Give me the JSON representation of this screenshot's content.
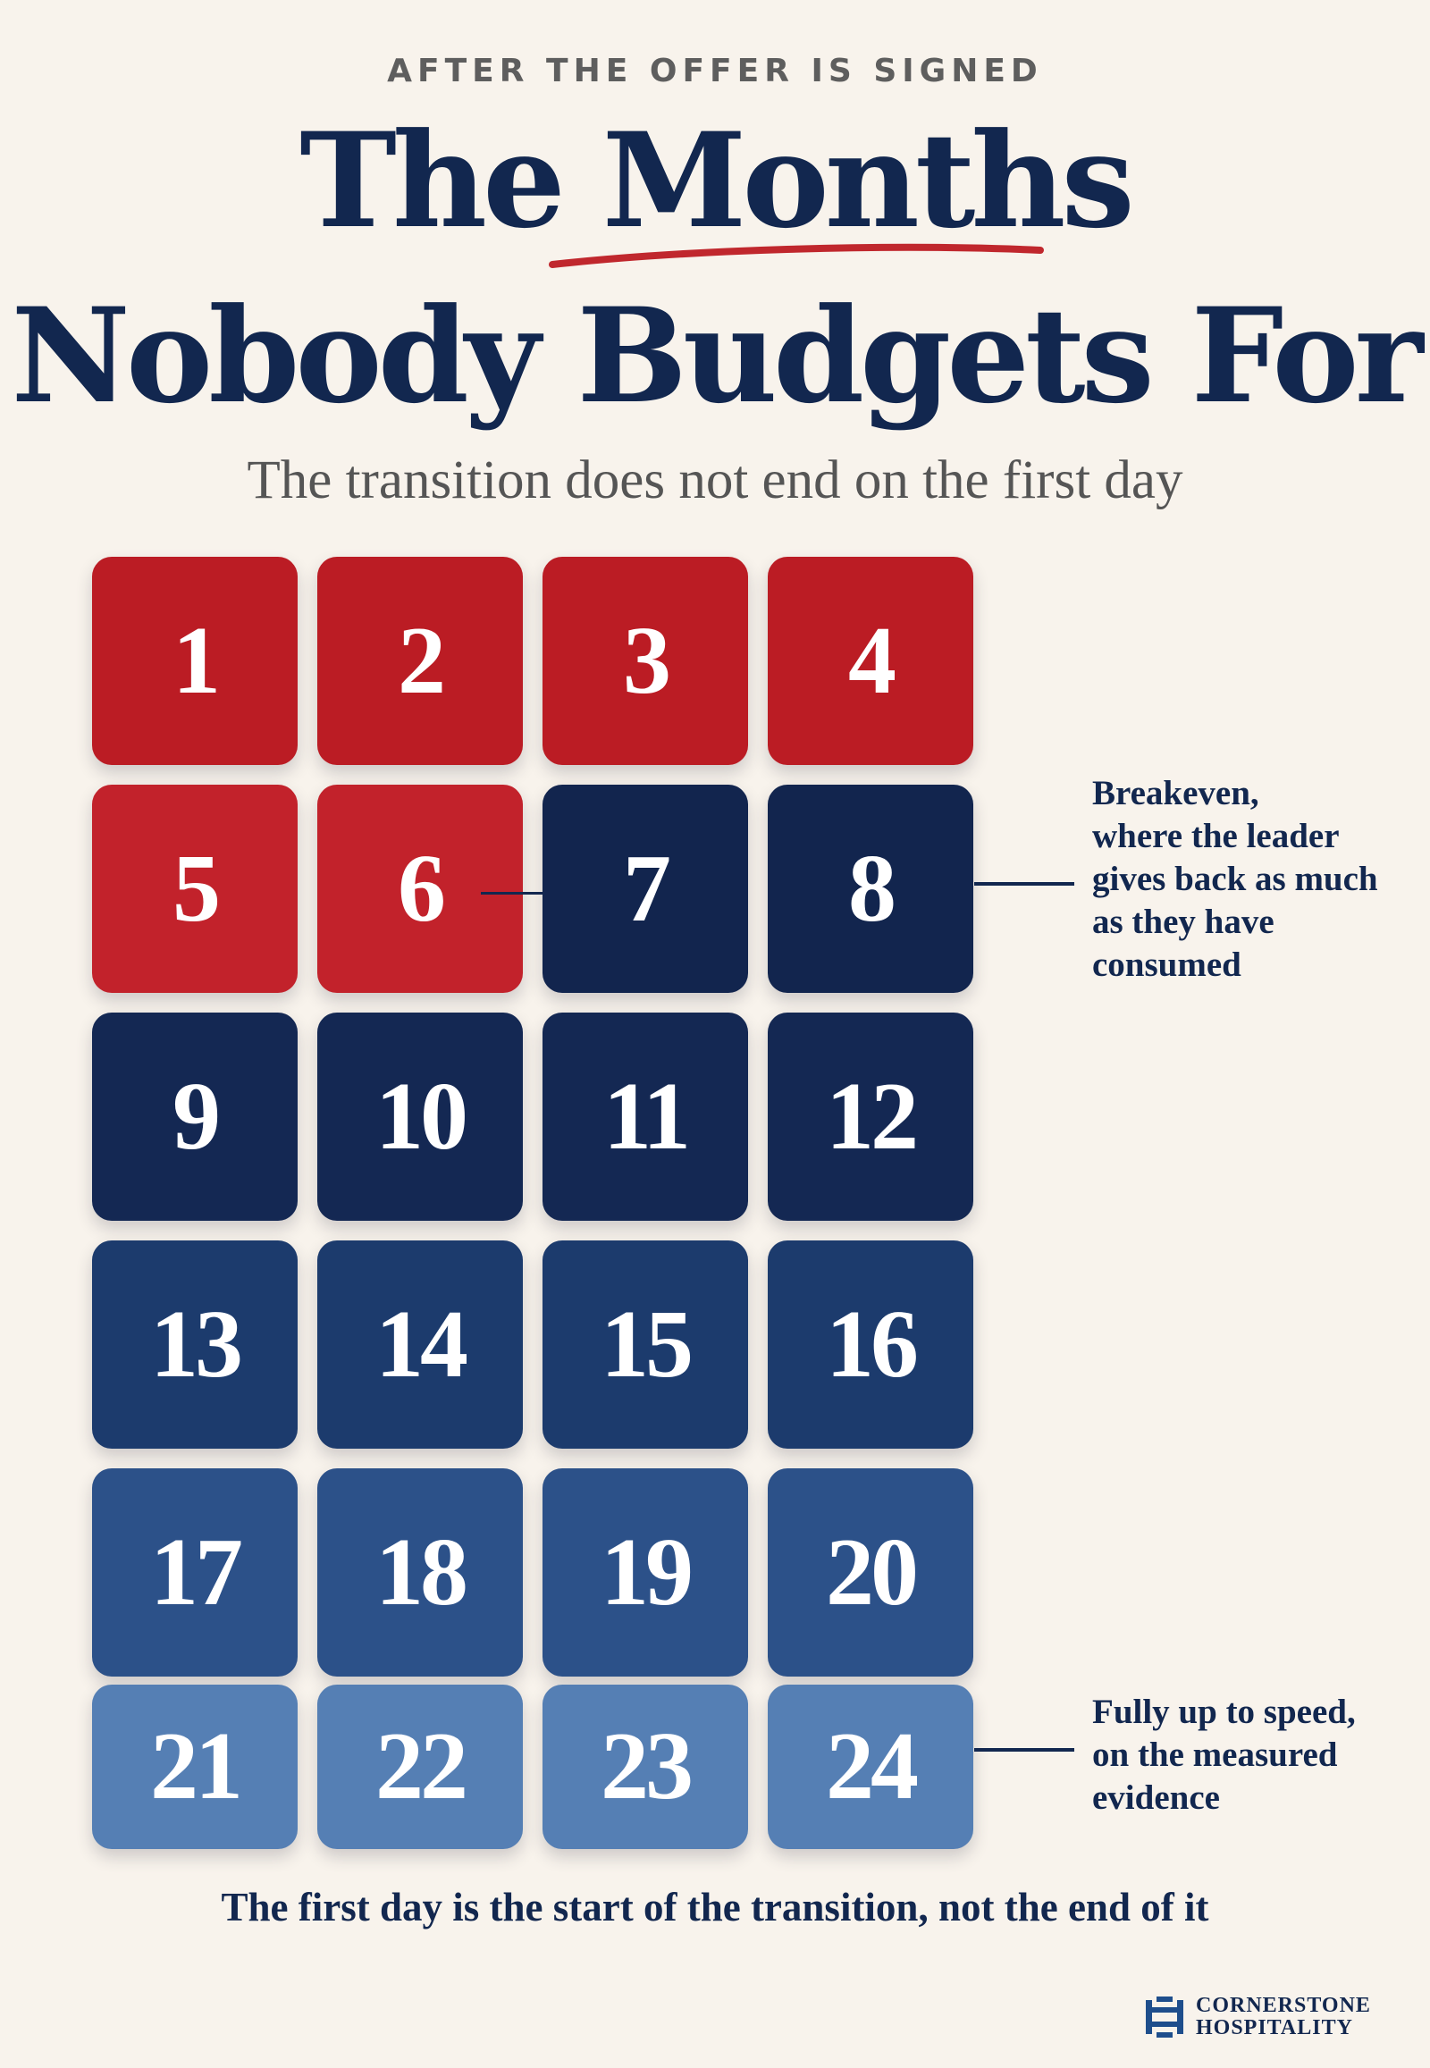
{
  "eyebrow": "AFTER THE OFFER IS SIGNED",
  "title": {
    "line1": "The Months",
    "line2": "Nobody Budgets For"
  },
  "subtitle": "The transition does not end on the first day",
  "months": [
    {
      "label": "1",
      "color": "#bb1c24"
    },
    {
      "label": "2",
      "color": "#bb1c24"
    },
    {
      "label": "3",
      "color": "#bb1c24"
    },
    {
      "label": "4",
      "color": "#bb1c24"
    },
    {
      "label": "5",
      "color": "#c2222b"
    },
    {
      "label": "6",
      "color": "#c2222b"
    },
    {
      "label": "7",
      "color": "#12254e"
    },
    {
      "label": "8",
      "color": "#12254e"
    },
    {
      "label": "9",
      "color": "#142853"
    },
    {
      "label": "10",
      "color": "#142853"
    },
    {
      "label": "11",
      "color": "#142853"
    },
    {
      "label": "12",
      "color": "#142853"
    },
    {
      "label": "13",
      "color": "#1c3b6d"
    },
    {
      "label": "14",
      "color": "#1c3b6d"
    },
    {
      "label": "15",
      "color": "#1c3b6d"
    },
    {
      "label": "16",
      "color": "#1c3b6d"
    },
    {
      "label": "17",
      "color": "#2c5189"
    },
    {
      "label": "18",
      "color": "#2c5189"
    },
    {
      "label": "19",
      "color": "#2c5189"
    },
    {
      "label": "20",
      "color": "#2c5189"
    },
    {
      "label": "21",
      "color": "#557fb4"
    },
    {
      "label": "22",
      "color": "#557fb4"
    },
    {
      "label": "23",
      "color": "#557fb4"
    },
    {
      "label": "24",
      "color": "#557fb4"
    }
  ],
  "callouts": {
    "breakeven": [
      "Breakeven,",
      "where the leader",
      "gives back as much",
      "as they have",
      "consumed"
    ],
    "full_speed": [
      "Fully up to speed,",
      "on the measured",
      "evidence"
    ]
  },
  "footer": "The first day is the start of the transition, not the end of it",
  "brand": {
    "line1": "CORNERSTONE",
    "line2": "HOSPITALITY"
  },
  "colors": {
    "background": "#f8f3ec",
    "navy": "#12274f",
    "red": "#bb1c24",
    "underline_red": "#c0272d"
  }
}
